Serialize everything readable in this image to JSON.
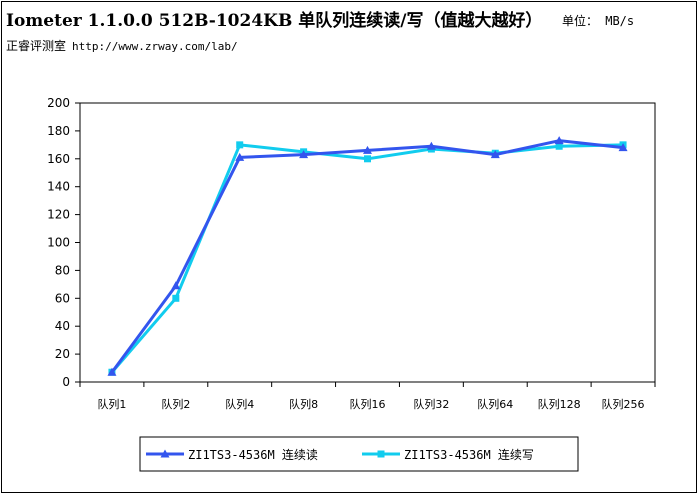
{
  "header": {
    "title": "Iometer 1.1.0.0 512B-1024KB 单队列连续读/写（值越大越好）",
    "unit": "单位： MB/s",
    "credit_name": "正睿评测室",
    "credit_url": "http://www.zrway.com/lab/"
  },
  "chart_data": {
    "type": "line",
    "title": "Iometer 1.1.0.0 512B-1024KB 单队列连续读/写（值越大越好）",
    "xlabel": "",
    "ylabel": "",
    "categories": [
      "队列1",
      "队列2",
      "队列4",
      "队列8",
      "队列16",
      "队列32",
      "队列64",
      "队列128",
      "队列256"
    ],
    "ylim": [
      0,
      200
    ],
    "yticks": [
      0,
      20,
      40,
      60,
      80,
      100,
      120,
      140,
      160,
      180,
      200
    ],
    "grid": false,
    "legend_position": "bottom",
    "series": [
      {
        "name": "ZI1TS3-4536M 连续读",
        "color": "#3355ee",
        "marker": "triangle",
        "values": [
          7,
          69,
          161,
          163,
          166,
          169,
          163,
          173,
          168
        ]
      },
      {
        "name": "ZI1TS3-4536M 连续写",
        "color": "#11ccee",
        "marker": "square",
        "values": [
          7,
          60,
          170,
          165,
          160,
          167,
          164,
          169,
          170
        ]
      }
    ]
  }
}
